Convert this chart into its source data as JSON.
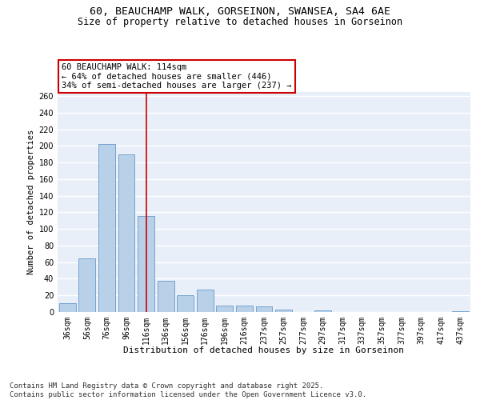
{
  "title_line1": "60, BEAUCHAMP WALK, GORSEINON, SWANSEA, SA4 6AE",
  "title_line2": "Size of property relative to detached houses in Gorseinon",
  "xlabel": "Distribution of detached houses by size in Gorseinon",
  "ylabel": "Number of detached properties",
  "categories": [
    "36sqm",
    "56sqm",
    "76sqm",
    "96sqm",
    "116sqm",
    "136sqm",
    "156sqm",
    "176sqm",
    "196sqm",
    "216sqm",
    "237sqm",
    "257sqm",
    "277sqm",
    "297sqm",
    "317sqm",
    "337sqm",
    "357sqm",
    "377sqm",
    "397sqm",
    "417sqm",
    "437sqm"
  ],
  "values": [
    11,
    65,
    202,
    190,
    116,
    38,
    20,
    27,
    8,
    8,
    7,
    3,
    0,
    2,
    0,
    0,
    0,
    0,
    0,
    0,
    1
  ],
  "bar_color": "#b8d0e8",
  "bar_edge_color": "#6699cc",
  "ref_line_x": 4.0,
  "ref_line_color": "#cc0000",
  "annotation_text": "60 BEAUCHAMP WALK: 114sqm\n← 64% of detached houses are smaller (446)\n34% of semi-detached houses are larger (237) →",
  "ylim": [
    0,
    265
  ],
  "yticks": [
    0,
    20,
    40,
    60,
    80,
    100,
    120,
    140,
    160,
    180,
    200,
    220,
    240,
    260
  ],
  "background_color": "#e8eff8",
  "grid_color": "#ffffff",
  "footer_text": "Contains HM Land Registry data © Crown copyright and database right 2025.\nContains public sector information licensed under the Open Government Licence v3.0.",
  "footer_fontsize": 6.5,
  "title_fontsize1": 9.5,
  "title_fontsize2": 8.5,
  "xlabel_fontsize": 8,
  "ylabel_fontsize": 7.5,
  "tick_fontsize": 7,
  "annot_fontsize": 7.5
}
